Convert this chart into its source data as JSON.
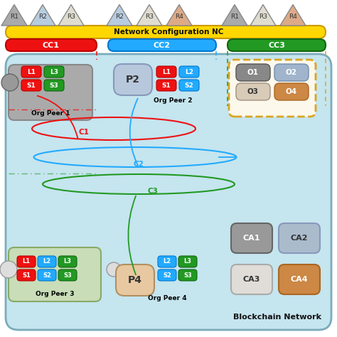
{
  "nc_text": "Network Configuration NC",
  "nc_color": "#FFD700",
  "nc_edge": "#cc9900",
  "cc1_color": "#EE1111",
  "cc1_edge": "#bb0000",
  "cc2_color": "#22AAFF",
  "cc2_edge": "#0077cc",
  "cc3_color": "#229922",
  "cc3_edge": "#116611",
  "blockchain_bg": "#c5e5ef",
  "blockchain_edge": "#7aacbb",
  "orderer_bg": "#fdf8ec",
  "orderer_edge": "#DAA520",
  "white_bg": "#ffffff",
  "gray_bg": "#aaaaaa",
  "red": "#EE1111",
  "cyan": "#22AAFF",
  "green": "#229922",
  "p2_bg": "#b8c8dc",
  "p4_bg": "#e8c8a0",
  "o1_bg": "#888888",
  "o2_bg": "#a0b4cc",
  "o3_bg": "#d8cbb8",
  "o4_bg": "#cc8844",
  "ca1_bg": "#999999",
  "ca2_bg": "#aabbcc",
  "ca3_bg": "#e0ddd8",
  "ca4_bg": "#cc8844",
  "peer1_bg": "#aaaaaa",
  "peer3_bg": "#c8ddb8",
  "tri_g1_colors": [
    "#aaaaaa",
    "#b8cce0",
    "#e0ddd0"
  ],
  "tri_g1_labels": [
    "R1",
    "R2",
    "R3"
  ],
  "tri_g2_colors": [
    "#b8cce0",
    "#e0ddd0",
    "#ddaa88"
  ],
  "tri_g2_labels": [
    "R2",
    "R3",
    "R4"
  ],
  "tri_g3_colors": [
    "#aaaaaa",
    "#e0ddd0",
    "#ddaa88"
  ],
  "tri_g3_labels": [
    "R1",
    "R3",
    "R4"
  ]
}
